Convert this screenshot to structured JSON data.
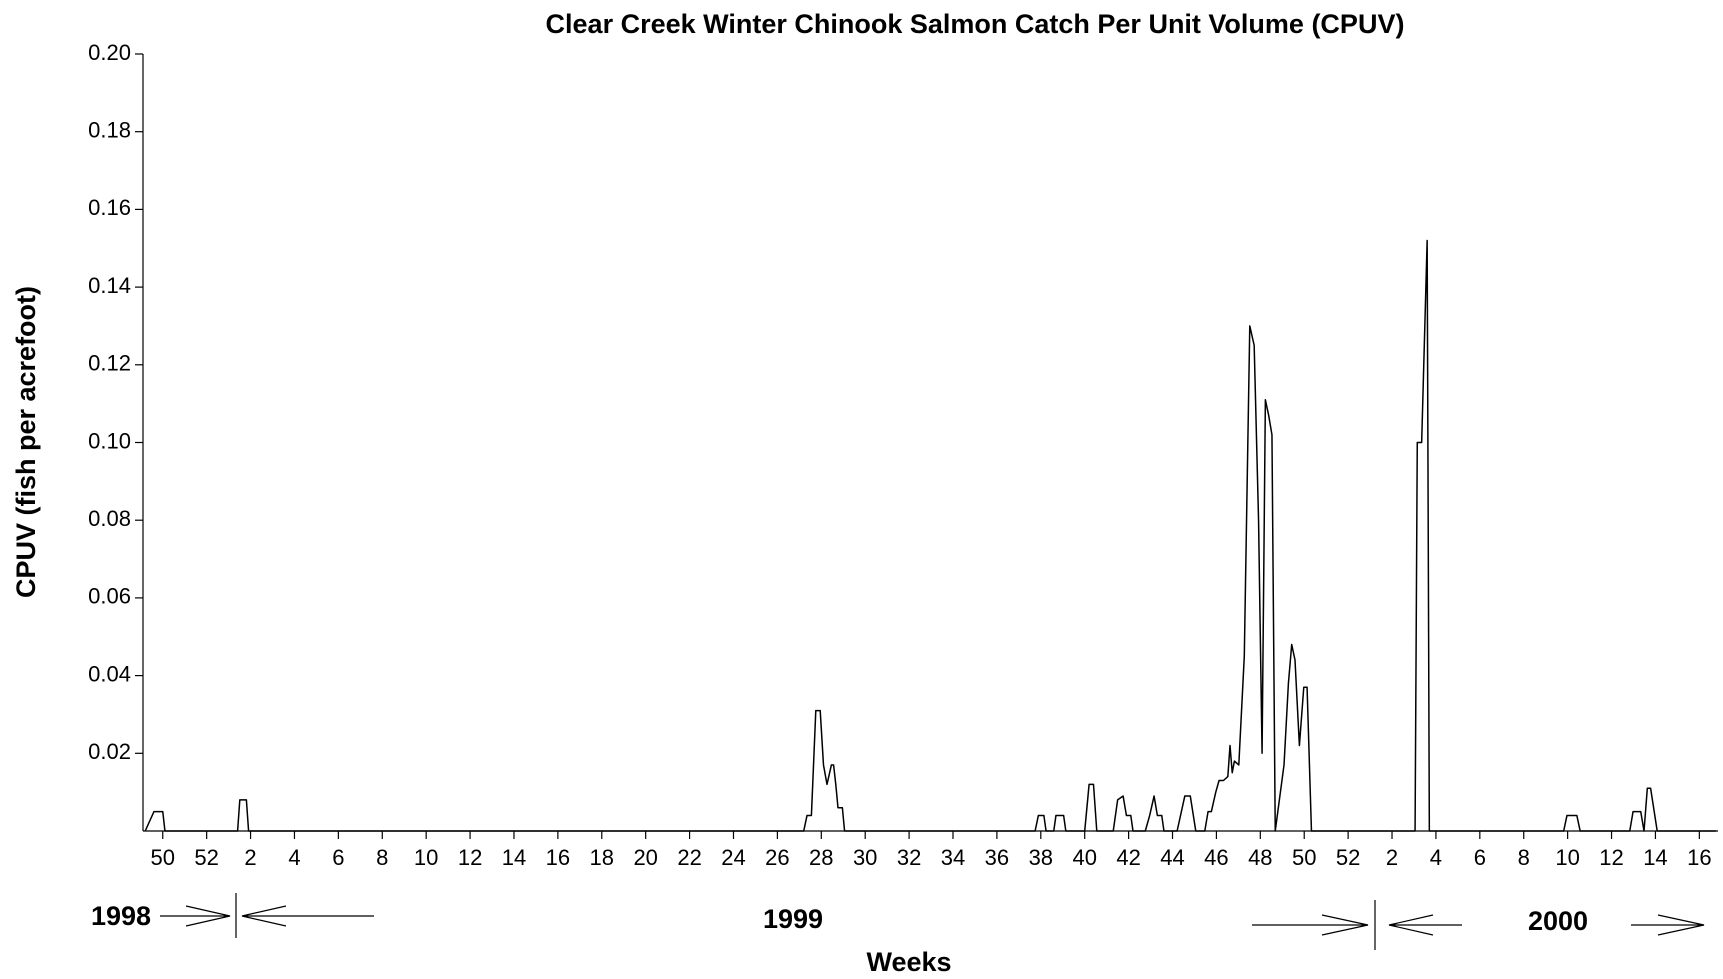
{
  "chart_data": {
    "type": "line",
    "title": "Clear Creek Winter Chinook Salmon Catch Per Unit Volume (CPUV)",
    "y_label": "CPUV (fish per acrefoot)",
    "x_label": "Weeks",
    "period_labels": [
      "1998",
      "1999",
      "2000"
    ],
    "color": "#000000",
    "x": [
      49.2,
      49.6,
      50.0,
      50.1,
      53.41,
      53.51,
      53.81,
      53.91,
      79.2,
      79.35,
      79.55,
      79.75,
      79.95,
      80.1,
      80.26,
      80.46,
      80.56,
      80.66,
      80.76,
      80.96,
      81.06,
      89.74,
      89.89,
      90.14,
      90.24,
      90.59,
      90.69,
      91.04,
      91.14,
      92.0,
      92.2,
      92.4,
      92.55,
      93.3,
      93.5,
      93.75,
      93.9,
      94.1,
      94.2,
      94.76,
      94.96,
      95.16,
      95.31,
      95.51,
      95.61,
      96.21,
      96.56,
      96.81,
      97.06,
      97.47,
      97.62,
      97.77,
      97.97,
      98.12,
      98.32,
      98.52,
      98.62,
      98.72,
      98.82,
      99.02,
      99.27,
      99.52,
      99.72,
      99.92,
      100.08,
      100.23,
      100.38,
      100.53,
      100.68,
      101.08,
      101.28,
      101.43,
      101.58,
      101.78,
      101.98,
      102.13,
      102.33,
      107.05,
      107.15,
      107.35,
      107.6,
      107.7,
      113.82,
      113.97,
      114.42,
      114.57,
      116.83,
      116.98,
      117.33,
      117.48,
      117.63,
      117.78,
      118.08,
      118.18,
      120.75
    ],
    "values": [
      0,
      0.005,
      0.005,
      0,
      0,
      0.008,
      0.008,
      0,
      0,
      0.004,
      0.004,
      0.031,
      0.031,
      0.017,
      0.012,
      0.017,
      0.017,
      0.012,
      0.006,
      0.006,
      0,
      0,
      0.004,
      0.004,
      0,
      0,
      0.004,
      0.004,
      0,
      0,
      0.012,
      0.012,
      0,
      0,
      0.008,
      0.009,
      0.004,
      0.004,
      0,
      0,
      0.004,
      0.009,
      0.004,
      0.004,
      0,
      0,
      0.009,
      0.009,
      0,
      0,
      0.005,
      0.005,
      0.01,
      0.013,
      0.013,
      0.014,
      0.022,
      0.015,
      0.018,
      0.017,
      0.045,
      0.13,
      0.125,
      0.08,
      0.02,
      0.111,
      0.107,
      0.102,
      0,
      0.017,
      0.038,
      0.048,
      0.044,
      0.022,
      0.037,
      0.037,
      0,
      0,
      0.1,
      0.1,
      0.152,
      0,
      0,
      0.004,
      0.004,
      0,
      0,
      0.005,
      0.005,
      0,
      0.011,
      0.011,
      0,
      0,
      0
    ],
    "xlim": [
      49.1,
      120.85
    ],
    "xticks": [
      {
        "value": 50,
        "label": "50"
      },
      {
        "value": 52,
        "label": "52"
      },
      {
        "value": 54,
        "label": "2"
      },
      {
        "value": 56,
        "label": "4"
      },
      {
        "value": 58,
        "label": "6"
      },
      {
        "value": 60,
        "label": "8"
      },
      {
        "value": 62,
        "label": "10"
      },
      {
        "value": 64,
        "label": "12"
      },
      {
        "value": 66,
        "label": "14"
      },
      {
        "value": 68,
        "label": "16"
      },
      {
        "value": 70,
        "label": "18"
      },
      {
        "value": 72,
        "label": "20"
      },
      {
        "value": 74,
        "label": "22"
      },
      {
        "value": 76,
        "label": "24"
      },
      {
        "value": 78,
        "label": "26"
      },
      {
        "value": 80,
        "label": "28"
      },
      {
        "value": 82,
        "label": "30"
      },
      {
        "value": 84,
        "label": "32"
      },
      {
        "value": 86,
        "label": "34"
      },
      {
        "value": 88,
        "label": "36"
      },
      {
        "value": 90,
        "label": "38"
      },
      {
        "value": 92,
        "label": "40"
      },
      {
        "value": 94,
        "label": "42"
      },
      {
        "value": 96,
        "label": "44"
      },
      {
        "value": 98,
        "label": "46"
      },
      {
        "value": 100,
        "label": "48"
      },
      {
        "value": 102,
        "label": "50"
      },
      {
        "value": 104,
        "label": "52"
      },
      {
        "value": 106,
        "label": "2"
      },
      {
        "value": 108,
        "label": "4"
      },
      {
        "value": 110,
        "label": "6"
      },
      {
        "value": 112,
        "label": "8"
      },
      {
        "value": 114,
        "label": "10"
      },
      {
        "value": 116,
        "label": "12"
      },
      {
        "value": 118,
        "label": "14"
      },
      {
        "value": 120,
        "label": "16"
      }
    ],
    "ylim": [
      0,
      0.2
    ],
    "yticks": [
      {
        "value": 0.02,
        "label": "0.02"
      },
      {
        "value": 0.04,
        "label": "0.04"
      },
      {
        "value": 0.06,
        "label": "0.06"
      },
      {
        "value": 0.08,
        "label": "0.08"
      },
      {
        "value": 0.1,
        "label": "0.10"
      },
      {
        "value": 0.12,
        "label": "0.12"
      },
      {
        "value": 0.14,
        "label": "0.14"
      },
      {
        "value": 0.16,
        "label": "0.16"
      },
      {
        "value": 0.18,
        "label": "0.18"
      },
      {
        "value": 0.2,
        "label": "0.20"
      }
    ],
    "grid": false
  }
}
